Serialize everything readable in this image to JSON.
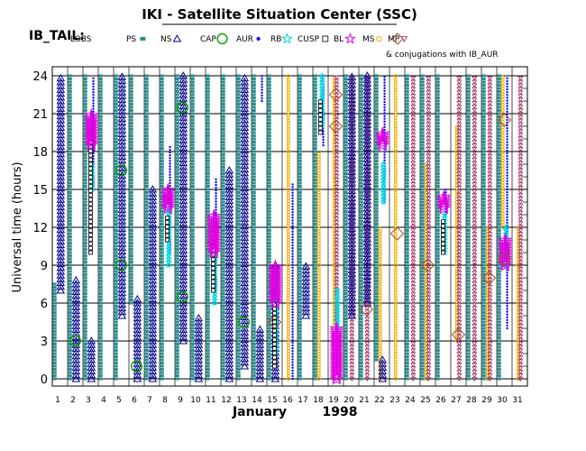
{
  "title": "IKI - Satellite Situation Center (SSC)",
  "chart_data": {
    "type": "scatter",
    "title": "IKI - Satellite Situation Center (SSC)",
    "region_label": "IB_TAIL:",
    "ylabel": "Universal time (hours)",
    "xlabel_month": "January",
    "xlabel_year": "1998",
    "x_ticks": [
      1,
      2,
      3,
      4,
      5,
      6,
      7,
      8,
      9,
      10,
      11,
      12,
      13,
      14,
      15,
      16,
      17,
      18,
      19,
      20,
      21,
      22,
      23,
      24,
      25,
      26,
      27,
      28,
      29,
      30,
      31
    ],
    "y_ticks": [
      "0",
      "3",
      "6",
      "9",
      "12",
      "15",
      "18",
      "21",
      "24"
    ],
    "ylim": [
      0,
      24
    ],
    "xlim": [
      1,
      31
    ],
    "grid": true,
    "conjugation_note": "& conjugations with IB_AUR",
    "legend_placement": "top",
    "legend": [
      {
        "label": "LOBS",
        "symbol": "none",
        "color": "#000000"
      },
      {
        "label": "PS",
        "symbol": "small-square",
        "color": "#2f8f8f"
      },
      {
        "label": "NS",
        "symbol": "triangle",
        "color": "#00008b"
      },
      {
        "label": "CAP",
        "symbol": "circle",
        "color": "#00a000"
      },
      {
        "label": "AUR",
        "symbol": "dot",
        "color": "#0000ff"
      },
      {
        "label": "RB",
        "symbol": "star",
        "color": "#00d8e0"
      },
      {
        "label": "CUSP",
        "symbol": "hollow-square",
        "color": "#000000"
      },
      {
        "label": "BL",
        "symbol": "star",
        "color": "#e000e0"
      },
      {
        "label": "MS",
        "symbol": "hollow-circle",
        "color": "#f0b000"
      },
      {
        "label": "MP",
        "symbol": "down-triangle",
        "color": "#a0205a"
      },
      {
        "label": "conjugation",
        "symbol": "diamond",
        "color": "#a0522d"
      }
    ],
    "series": [
      {
        "name": "PS",
        "day_spans": [
          {
            "day": 1,
            "from": 0,
            "to": 7.5
          },
          {
            "day": 2,
            "from": 0,
            "to": 24
          },
          {
            "day": 3,
            "from": 0,
            "to": 24
          },
          {
            "day": 4,
            "from": 0,
            "to": 24
          },
          {
            "day": 5,
            "from": 0,
            "to": 24
          },
          {
            "day": 6,
            "from": 6,
            "to": 24
          },
          {
            "day": 7,
            "from": 0,
            "to": 24
          },
          {
            "day": 8,
            "from": 0,
            "to": 24
          },
          {
            "day": 9,
            "from": 0,
            "to": 24
          },
          {
            "day": 10,
            "from": 0,
            "to": 24
          },
          {
            "day": 11,
            "from": 0,
            "to": 24
          },
          {
            "day": 12,
            "from": 0,
            "to": 24
          },
          {
            "day": 13,
            "from": 0,
            "to": 24
          },
          {
            "day": 14,
            "from": 0,
            "to": 24
          },
          {
            "day": 15,
            "from": 0,
            "to": 24
          },
          {
            "day": 17,
            "from": 0,
            "to": 24
          },
          {
            "day": 18,
            "from": 0,
            "to": 24
          },
          {
            "day": 20,
            "from": 0,
            "to": 24
          },
          {
            "day": 21,
            "from": 0,
            "to": 24
          },
          {
            "day": 22,
            "from": 1.5,
            "to": 24
          },
          {
            "day": 24,
            "from": 0,
            "to": 24
          },
          {
            "day": 25,
            "from": 0,
            "to": 24
          },
          {
            "day": 26,
            "from": 0,
            "to": 24
          },
          {
            "day": 28,
            "from": 0,
            "to": 24
          },
          {
            "day": 29,
            "from": 0,
            "to": 24
          },
          {
            "day": 30,
            "from": 0,
            "to": 24
          }
        ]
      },
      {
        "name": "NS",
        "day_spans": [
          {
            "day": 1,
            "from": 7,
            "to": 24
          },
          {
            "day": 2,
            "from": 0,
            "to": 8
          },
          {
            "day": 3,
            "from": 0,
            "to": 3
          },
          {
            "day": 5,
            "from": 5,
            "to": 24
          },
          {
            "day": 6,
            "from": 0,
            "to": 6.5
          },
          {
            "day": 7,
            "from": 0,
            "to": 15
          },
          {
            "day": 9,
            "from": 3,
            "to": 24
          },
          {
            "day": 10,
            "from": 0,
            "to": 5
          },
          {
            "day": 12,
            "from": 0,
            "to": 16.5
          },
          {
            "day": 13,
            "from": 1,
            "to": 24
          },
          {
            "day": 14,
            "from": 0,
            "to": 4
          },
          {
            "day": 15,
            "from": 0,
            "to": 9
          },
          {
            "day": 17,
            "from": 5,
            "to": 9
          },
          {
            "day": 20,
            "from": 5,
            "to": 24
          },
          {
            "day": 21,
            "from": 6,
            "to": 24
          },
          {
            "day": 22,
            "from": 0,
            "to": 1.5
          }
        ]
      },
      {
        "name": "AUR",
        "day_spans": [
          {
            "day": 3,
            "from": 15,
            "to": 24
          },
          {
            "day": 8,
            "from": 10,
            "to": 18.5
          },
          {
            "day": 11,
            "from": 7,
            "to": 16
          },
          {
            "day": 14,
            "from": 22,
            "to": 24
          },
          {
            "day": 15,
            "from": 4,
            "to": 9
          },
          {
            "day": 16,
            "from": 0,
            "to": 15.5
          },
          {
            "day": 18,
            "from": 18.5,
            "to": 24
          },
          {
            "day": 22,
            "from": 14,
            "to": 24
          },
          {
            "day": 26,
            "from": 13,
            "to": 15
          },
          {
            "day": 30,
            "from": 4,
            "to": 24
          }
        ]
      },
      {
        "name": "RB",
        "day_spans": [
          {
            "day": 3,
            "from": 15,
            "to": 17
          },
          {
            "day": 8,
            "from": 9,
            "to": 13.5
          },
          {
            "day": 11,
            "from": 6,
            "to": 10
          },
          {
            "day": 15,
            "from": 2,
            "to": 8
          },
          {
            "day": 18,
            "from": 20,
            "to": 24
          },
          {
            "day": 19,
            "from": 4,
            "to": 7
          },
          {
            "day": 22,
            "from": 14,
            "to": 17
          },
          {
            "day": 26,
            "from": 10,
            "to": 13
          },
          {
            "day": 30,
            "from": 9,
            "to": 12
          }
        ]
      },
      {
        "name": "CUSP",
        "day_spans": [
          {
            "day": 3,
            "from": 10,
            "to": 20
          },
          {
            "day": 8,
            "from": 11,
            "to": 13
          },
          {
            "day": 11,
            "from": 7,
            "to": 11
          },
          {
            "day": 15,
            "from": 1,
            "to": 6
          },
          {
            "day": 18,
            "from": 19.5,
            "to": 22
          },
          {
            "day": 26,
            "from": 10,
            "to": 12.5
          }
        ]
      },
      {
        "name": "BL",
        "day_spans": [
          {
            "day": 3,
            "from": 18.5,
            "to": 21
          },
          {
            "day": 8,
            "from": 13.5,
            "to": 15
          },
          {
            "day": 11,
            "from": 10,
            "to": 13
          },
          {
            "day": 15,
            "from": 6,
            "to": 9
          },
          {
            "day": 19,
            "from": 0,
            "to": 4
          },
          {
            "day": 22,
            "from": 18.5,
            "to": 19.5
          },
          {
            "day": 26,
            "from": 13.5,
            "to": 14.5
          },
          {
            "day": 30,
            "from": 9,
            "to": 11
          }
        ]
      },
      {
        "name": "MS",
        "day_spans": [
          {
            "day": 16,
            "from": 0,
            "to": 24
          },
          {
            "day": 18,
            "from": 0,
            "to": 18
          },
          {
            "day": 19,
            "from": 4,
            "to": 24
          },
          {
            "day": 22,
            "from": 0,
            "to": 12
          },
          {
            "day": 23,
            "from": 0,
            "to": 24
          },
          {
            "day": 25,
            "from": 0,
            "to": 17
          },
          {
            "day": 27,
            "from": 3,
            "to": 20
          },
          {
            "day": 29,
            "from": 0,
            "to": 12
          },
          {
            "day": 30,
            "from": 12,
            "to": 24
          },
          {
            "day": 31,
            "from": 0,
            "to": 12
          }
        ]
      },
      {
        "name": "MP",
        "day_spans": [
          {
            "day": 19,
            "from": 4,
            "to": 24
          },
          {
            "day": 20,
            "from": 0,
            "to": 24
          },
          {
            "day": 21,
            "from": 0,
            "to": 24
          },
          {
            "day": 24,
            "from": 0,
            "to": 24
          },
          {
            "day": 25,
            "from": 0,
            "to": 24
          },
          {
            "day": 27,
            "from": 0,
            "to": 24
          },
          {
            "day": 28,
            "from": 0,
            "to": 24
          },
          {
            "day": 29,
            "from": 0,
            "to": 24
          },
          {
            "day": 31,
            "from": 0,
            "to": 24
          }
        ]
      }
    ],
    "cap_points": [
      {
        "day": 2,
        "hour": 3
      },
      {
        "day": 5,
        "hour": 16.5
      },
      {
        "day": 5,
        "hour": 9
      },
      {
        "day": 6,
        "hour": 1
      },
      {
        "day": 9,
        "hour": 21.5
      },
      {
        "day": 9,
        "hour": 6.5
      },
      {
        "day": 13,
        "hour": 4.5
      }
    ],
    "conjugations": [
      {
        "day": 19,
        "hour": 22.5
      },
      {
        "day": 19,
        "hour": 20
      },
      {
        "day": 15,
        "hour": 4.5
      },
      {
        "day": 21,
        "hour": 5.5
      },
      {
        "day": 23,
        "hour": 11.5
      },
      {
        "day": 25,
        "hour": 9
      },
      {
        "day": 27,
        "hour": 3.5
      },
      {
        "day": 29,
        "hour": 8
      },
      {
        "day": 30,
        "hour": 9.5
      },
      {
        "day": 30,
        "hour": 20.5
      }
    ]
  }
}
